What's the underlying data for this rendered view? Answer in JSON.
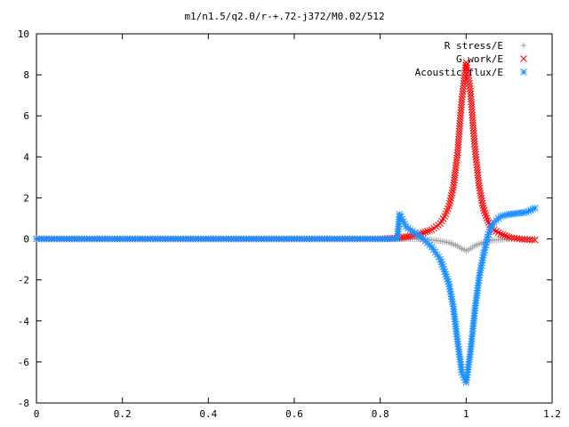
{
  "chart_data": {
    "type": "scatter",
    "title": "m1/n1.5/q2.0/r-+.72-j372/M0.02/512",
    "xlabel": "",
    "ylabel": "",
    "xlim": [
      0,
      1.2
    ],
    "ylim": [
      -8,
      10
    ],
    "x_ticks": [
      "0",
      "0.2",
      "0.4",
      "0.6",
      "0.8",
      "1",
      "1.2"
    ],
    "y_ticks": [
      "10",
      "8",
      "6",
      "4",
      "2",
      "0",
      "-2",
      "-4",
      "-6",
      "-8"
    ],
    "grid": false,
    "legend_position": "top-right",
    "series": [
      {
        "name": "R stress/E",
        "marker": "+",
        "color": "#a0a0a0",
        "points": [
          [
            0.0,
            0.0
          ],
          [
            0.1,
            0.0
          ],
          [
            0.2,
            0.0
          ],
          [
            0.3,
            0.0
          ],
          [
            0.4,
            0.0
          ],
          [
            0.5,
            0.0
          ],
          [
            0.6,
            0.0
          ],
          [
            0.7,
            0.0
          ],
          [
            0.8,
            0.0
          ],
          [
            0.845,
            0.0
          ],
          [
            0.86,
            0.0
          ],
          [
            0.88,
            0.0
          ],
          [
            0.9,
            -0.02
          ],
          [
            0.92,
            -0.05
          ],
          [
            0.94,
            -0.1
          ],
          [
            0.96,
            -0.18
          ],
          [
            0.98,
            -0.35
          ],
          [
            0.99,
            -0.48
          ],
          [
            1.0,
            -0.58
          ],
          [
            1.01,
            -0.48
          ],
          [
            1.02,
            -0.33
          ],
          [
            1.04,
            -0.17
          ],
          [
            1.06,
            -0.07
          ],
          [
            1.08,
            -0.03
          ],
          [
            1.1,
            -0.01
          ],
          [
            1.13,
            0.0
          ],
          [
            1.16,
            0.0
          ]
        ]
      },
      {
        "name": "G work/E",
        "marker": "x",
        "color": "#ff0000",
        "points": [
          [
            0.0,
            0.0
          ],
          [
            0.1,
            0.0
          ],
          [
            0.2,
            0.0
          ],
          [
            0.3,
            0.0
          ],
          [
            0.4,
            0.0
          ],
          [
            0.5,
            0.0
          ],
          [
            0.6,
            0.0
          ],
          [
            0.7,
            0.0
          ],
          [
            0.8,
            0.0
          ],
          [
            0.845,
            0.05
          ],
          [
            0.86,
            0.1
          ],
          [
            0.88,
            0.18
          ],
          [
            0.9,
            0.3
          ],
          [
            0.92,
            0.45
          ],
          [
            0.94,
            0.75
          ],
          [
            0.95,
            1.1
          ],
          [
            0.96,
            1.6
          ],
          [
            0.97,
            2.5
          ],
          [
            0.98,
            4.2
          ],
          [
            0.99,
            6.8
          ],
          [
            1.0,
            8.6
          ],
          [
            1.01,
            7.2
          ],
          [
            1.02,
            4.5
          ],
          [
            1.03,
            2.6
          ],
          [
            1.04,
            1.5
          ],
          [
            1.05,
            0.9
          ],
          [
            1.06,
            0.5
          ],
          [
            1.08,
            0.25
          ],
          [
            1.1,
            0.08
          ],
          [
            1.13,
            -0.02
          ],
          [
            1.16,
            -0.05
          ]
        ]
      },
      {
        "name": "Acoustic flux/E",
        "marker": "*",
        "color": "#1e90ff",
        "points": [
          [
            0.0,
            0.0
          ],
          [
            0.1,
            0.0
          ],
          [
            0.2,
            0.0
          ],
          [
            0.3,
            0.0
          ],
          [
            0.4,
            0.0
          ],
          [
            0.5,
            0.0
          ],
          [
            0.6,
            0.0
          ],
          [
            0.7,
            0.0
          ],
          [
            0.8,
            0.0
          ],
          [
            0.84,
            0.0
          ],
          [
            0.845,
            1.2
          ],
          [
            0.86,
            0.6
          ],
          [
            0.88,
            0.3
          ],
          [
            0.9,
            0.0
          ],
          [
            0.92,
            -0.4
          ],
          [
            0.94,
            -1.0
          ],
          [
            0.96,
            -2.2
          ],
          [
            0.97,
            -3.3
          ],
          [
            0.98,
            -5.0
          ],
          [
            0.99,
            -6.5
          ],
          [
            1.0,
            -7.0
          ],
          [
            1.01,
            -5.5
          ],
          [
            1.02,
            -3.5
          ],
          [
            1.03,
            -1.9
          ],
          [
            1.04,
            -0.8
          ],
          [
            1.05,
            0.1
          ],
          [
            1.06,
            0.7
          ],
          [
            1.08,
            1.1
          ],
          [
            1.1,
            1.2
          ],
          [
            1.12,
            1.25
          ],
          [
            1.14,
            1.3
          ],
          [
            1.16,
            1.5
          ]
        ]
      }
    ]
  }
}
